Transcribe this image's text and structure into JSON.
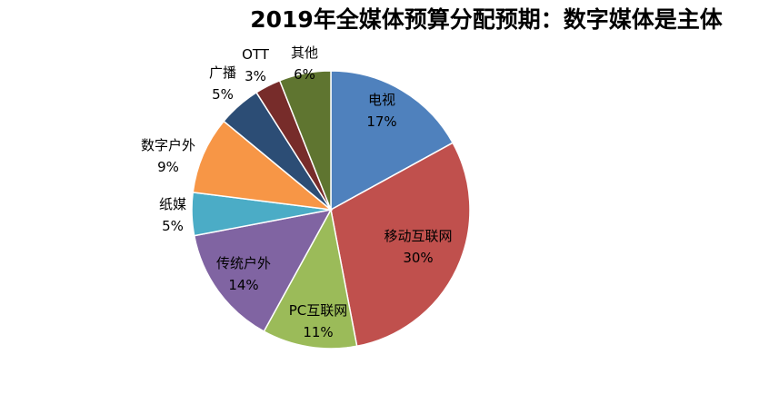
{
  "chart_data": {
    "type": "pie",
    "title": "2019年全媒体预算分配预期：数字媒体是主体",
    "start_angle": "top",
    "direction": "clockwise",
    "slices": [
      {
        "label": "电视",
        "value": 17,
        "value_label": "17%",
        "color": "#4F81BD"
      },
      {
        "label": "移动互联网",
        "value": 30,
        "value_label": "30%",
        "color": "#C0504D"
      },
      {
        "label": "PC互联网",
        "value": 11,
        "value_label": "11%",
        "color": "#9BBB59"
      },
      {
        "label": "传统户外",
        "value": 14,
        "value_label": "14%",
        "color": "#8064A2"
      },
      {
        "label": "纸媒",
        "value": 5,
        "value_label": "5%",
        "color": "#4BACC6"
      },
      {
        "label": "数字户外",
        "value": 9,
        "value_label": "9%",
        "color": "#F79646"
      },
      {
        "label": "广播",
        "value": 5,
        "value_label": "5%",
        "color": "#2C4D75"
      },
      {
        "label": "OTT",
        "value": 3,
        "value_label": "3%",
        "color": "#772C2A"
      },
      {
        "label": "其他",
        "value": 6,
        "value_label": "6%",
        "color": "#5F7530"
      }
    ]
  }
}
